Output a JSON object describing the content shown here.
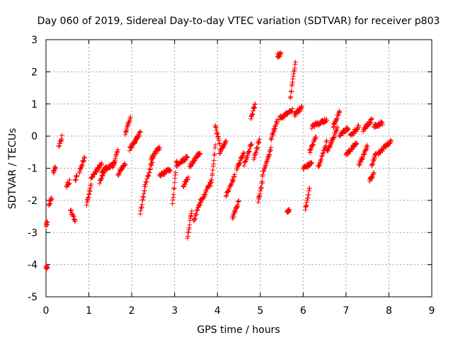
{
  "chart_data": {
    "type": "scatter",
    "title": "Day 060 of 2019, Sidereal Day-to-day VTEC variation (SDTVAR) for receiver p803",
    "xlabel": "GPS time / hours",
    "ylabel": "SDTVAR / TECUs",
    "xlim": [
      0,
      9
    ],
    "ylim": [
      -5,
      3
    ],
    "x_ticks": [
      0,
      1,
      2,
      3,
      4,
      5,
      6,
      7,
      8,
      9
    ],
    "y_ticks": [
      -5,
      -4,
      -3,
      -2,
      -1,
      0,
      1,
      2,
      3
    ],
    "x_tick_labels": [
      "0",
      "1",
      "2",
      "3",
      "4",
      "5",
      "6",
      "7",
      "8",
      "9"
    ],
    "y_tick_labels": [
      "-5",
      "-4",
      "-3",
      "-2",
      "-1",
      "0",
      "1",
      "2",
      "3"
    ],
    "grid": true,
    "marker": "+",
    "marker_color": "#ff0000",
    "series": [
      {
        "name": "SDTVAR p803",
        "segments": [
          {
            "x0": 0.0,
            "x1": 0.03,
            "y0": -2.75,
            "y1": -2.7
          },
          {
            "x0": 0.0,
            "x1": 0.03,
            "y0": -4.1,
            "y1": -4.05
          },
          {
            "x0": 0.07,
            "x1": 0.13,
            "y0": -2.15,
            "y1": -1.9
          },
          {
            "x0": 0.17,
            "x1": 0.22,
            "y0": -1.15,
            "y1": -0.95
          },
          {
            "x0": 0.3,
            "x1": 0.37,
            "y0": -0.28,
            "y1": -0.03
          },
          {
            "x0": 0.48,
            "x1": 0.55,
            "y0": -1.55,
            "y1": -1.4
          },
          {
            "x0": 0.57,
            "x1": 0.68,
            "y0": -2.25,
            "y1": -2.65
          },
          {
            "x0": 0.68,
            "x1": 0.72,
            "y0": -1.35,
            "y1": -1.25
          },
          {
            "x0": 0.78,
            "x1": 0.9,
            "y0": -1.1,
            "y1": -0.65
          },
          {
            "x0": 0.95,
            "x1": 1.05,
            "y0": -2.1,
            "y1": -1.55
          },
          {
            "x0": 1.05,
            "x1": 1.3,
            "y0": -1.3,
            "y1": -0.85
          },
          {
            "x0": 1.25,
            "x1": 1.4,
            "y0": -1.45,
            "y1": -0.95
          },
          {
            "x0": 1.3,
            "x1": 1.6,
            "y0": -1.1,
            "y1": -0.85
          },
          {
            "x0": 1.55,
            "x1": 1.68,
            "y0": -0.95,
            "y1": -0.45
          },
          {
            "x0": 1.68,
            "x1": 1.85,
            "y0": -1.2,
            "y1": -0.85
          },
          {
            "x0": 1.85,
            "x1": 1.97,
            "y0": 0.1,
            "y1": 0.55
          },
          {
            "x0": 1.95,
            "x1": 2.1,
            "y0": -0.4,
            "y1": -0.1
          },
          {
            "x0": 2.05,
            "x1": 2.2,
            "y0": -0.2,
            "y1": 0.1
          },
          {
            "x0": 2.2,
            "x1": 2.3,
            "y0": -2.4,
            "y1": -1.7
          },
          {
            "x0": 2.3,
            "x1": 2.5,
            "y0": -1.6,
            "y1": -0.7
          },
          {
            "x0": 2.45,
            "x1": 2.65,
            "y0": -0.7,
            "y1": -0.35
          },
          {
            "x0": 2.65,
            "x1": 2.9,
            "y0": -1.2,
            "y1": -1.05
          },
          {
            "x0": 2.95,
            "x1": 3.05,
            "y0": -2.15,
            "y1": -0.75
          },
          {
            "x0": 3.05,
            "x1": 3.3,
            "y0": -0.9,
            "y1": -0.65
          },
          {
            "x0": 3.2,
            "x1": 3.32,
            "y0": -1.55,
            "y1": -1.3
          },
          {
            "x0": 3.3,
            "x1": 3.4,
            "y0": -3.2,
            "y1": -2.3
          },
          {
            "x0": 3.35,
            "x1": 3.6,
            "y0": -0.95,
            "y1": -0.5
          },
          {
            "x0": 3.45,
            "x1": 3.6,
            "y0": -2.65,
            "y1": -2.0
          },
          {
            "x0": 3.6,
            "x1": 3.85,
            "y0": -2.1,
            "y1": -1.4
          },
          {
            "x0": 3.85,
            "x1": 3.95,
            "y0": -1.6,
            "y1": -0.3
          },
          {
            "x0": 3.95,
            "x1": 4.05,
            "y0": 0.3,
            "y1": -0.25
          },
          {
            "x0": 4.05,
            "x1": 4.2,
            "y0": -0.5,
            "y1": -0.15
          },
          {
            "x0": 4.2,
            "x1": 4.4,
            "y0": -1.85,
            "y1": -1.25
          },
          {
            "x0": 4.35,
            "x1": 4.5,
            "y0": -2.55,
            "y1": -2.0
          },
          {
            "x0": 4.45,
            "x1": 4.62,
            "y0": -1.0,
            "y1": -0.55
          },
          {
            "x0": 4.62,
            "x1": 4.8,
            "y0": -0.9,
            "y1": -0.2
          },
          {
            "x0": 4.78,
            "x1": 4.88,
            "y0": 0.55,
            "y1": 1.0
          },
          {
            "x0": 4.85,
            "x1": 4.98,
            "y0": -0.7,
            "y1": -0.1
          },
          {
            "x0": 4.95,
            "x1": 5.05,
            "y0": -2.0,
            "y1": -1.4
          },
          {
            "x0": 5.05,
            "x1": 5.25,
            "y0": -1.2,
            "y1": -0.4
          },
          {
            "x0": 5.25,
            "x1": 5.4,
            "y0": -0.1,
            "y1": 0.5
          },
          {
            "x0": 5.4,
            "x1": 5.48,
            "y0": 2.5,
            "y1": 2.55
          },
          {
            "x0": 5.45,
            "x1": 5.75,
            "y0": 0.55,
            "y1": 0.8
          },
          {
            "x0": 5.62,
            "x1": 5.68,
            "y0": -2.4,
            "y1": -2.3
          },
          {
            "x0": 5.7,
            "x1": 5.82,
            "y0": 1.2,
            "y1": 2.3
          },
          {
            "x0": 5.8,
            "x1": 5.97,
            "y0": 0.65,
            "y1": 0.9
          },
          {
            "x0": 6.0,
            "x1": 6.2,
            "y0": -1.0,
            "y1": -0.85
          },
          {
            "x0": 6.05,
            "x1": 6.15,
            "y0": -2.3,
            "y1": -1.6
          },
          {
            "x0": 6.15,
            "x1": 6.3,
            "y0": -0.5,
            "y1": 0.0
          },
          {
            "x0": 6.2,
            "x1": 6.55,
            "y0": 0.3,
            "y1": 0.5
          },
          {
            "x0": 6.35,
            "x1": 6.55,
            "y0": -1.0,
            "y1": -0.2
          },
          {
            "x0": 6.55,
            "x1": 6.8,
            "y0": -0.5,
            "y1": 0.25
          },
          {
            "x0": 6.7,
            "x1": 6.85,
            "y0": 0.3,
            "y1": 0.75
          },
          {
            "x0": 6.85,
            "x1": 7.05,
            "y0": 0.05,
            "y1": 0.25
          },
          {
            "x0": 7.0,
            "x1": 7.25,
            "y0": -0.6,
            "y1": -0.2
          },
          {
            "x0": 7.1,
            "x1": 7.3,
            "y0": 0.0,
            "y1": 0.3
          },
          {
            "x0": 7.3,
            "x1": 7.5,
            "y0": -0.9,
            "y1": -0.3
          },
          {
            "x0": 7.4,
            "x1": 7.6,
            "y0": 0.2,
            "y1": 0.5
          },
          {
            "x0": 7.55,
            "x1": 7.65,
            "y0": -1.4,
            "y1": -1.15
          },
          {
            "x0": 7.6,
            "x1": 7.7,
            "y0": -0.9,
            "y1": -0.55
          },
          {
            "x0": 7.65,
            "x1": 7.85,
            "y0": 0.3,
            "y1": 0.4
          },
          {
            "x0": 7.75,
            "x1": 8.05,
            "y0": -0.55,
            "y1": -0.15
          }
        ]
      }
    ]
  }
}
